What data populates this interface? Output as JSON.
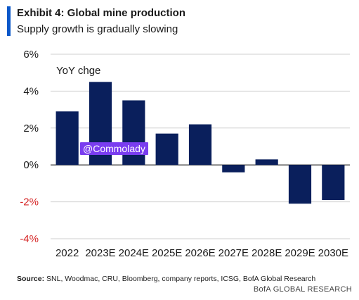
{
  "header": {
    "title": "Exhibit 4: Global mine production",
    "subtitle": "Supply growth is gradually slowing"
  },
  "annotation": "YoY chge",
  "watermark": "@Commolady",
  "footer": {
    "source_label": "Source:",
    "source_text": "SNL, Woodmac, CRU, Bloomberg, company reports, ICSG, BofA Global Research",
    "brand": "BofA GLOBAL RESEARCH"
  },
  "colors": {
    "bar": "#0a1f5c",
    "negative_tick": "#d62828",
    "accent": "#0a57c9",
    "watermark_bg": "#7a3df0"
  },
  "chart_data": {
    "type": "bar",
    "title": "Exhibit 4: Global mine production",
    "subtitle": "Supply growth is gradually slowing",
    "xlabel": "",
    "ylabel": "YoY chge",
    "categories": [
      "2022",
      "2023E",
      "2024E",
      "2025E",
      "2026E",
      "2027E",
      "2028E",
      "2029E",
      "2030E"
    ],
    "values": [
      2.9,
      4.5,
      3.5,
      1.7,
      2.2,
      -0.4,
      0.3,
      -2.1,
      -1.9
    ],
    "ylim": [
      -4,
      6
    ],
    "yticks": [
      6,
      4,
      2,
      0,
      -2,
      -4
    ],
    "ytick_labels": [
      "6%",
      "4%",
      "2%",
      "0%",
      "-2%",
      "-4%"
    ],
    "grid": true,
    "legend": "none"
  }
}
